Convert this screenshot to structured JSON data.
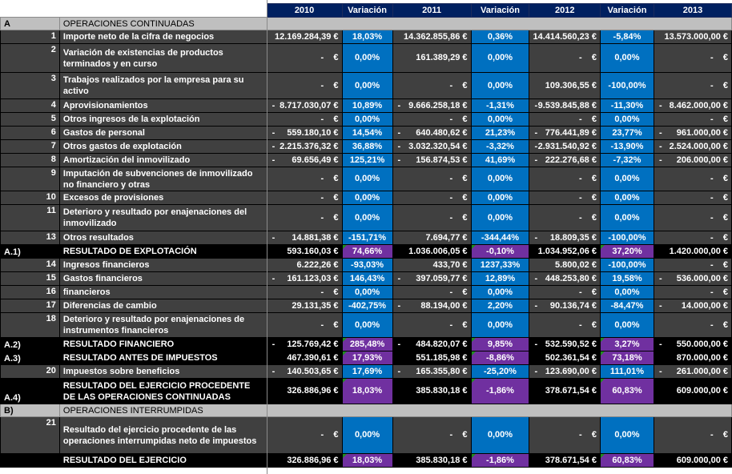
{
  "columns": [
    "2010",
    "Variación",
    "2011",
    "Variación",
    "2012",
    "Variación",
    "2013"
  ],
  "colors": {
    "header": "#002060",
    "cell": "#404040",
    "variation": "#0070c0",
    "total_variation": "#7030a0",
    "section": "#bfbfbf"
  },
  "rows": [
    {
      "type": "section",
      "code": "A",
      "desc": "OPERACIONES CONTINUADAS"
    },
    {
      "type": "item",
      "code": "1",
      "desc": "Importe neto de la cifra de negocios",
      "v2010": {
        "neg": "",
        "val": "12.169.284,39 €"
      },
      "p1": "18,03%",
      "v2011": {
        "neg": "",
        "val": "14.362.855,86 €"
      },
      "p2": "0,36%",
      "v2012": {
        "neg": "",
        "val": "14.414.560,23 €"
      },
      "p3": "-5,84%",
      "v2013": {
        "neg": "",
        "val": "13.573.000,00 €"
      }
    },
    {
      "type": "item",
      "code": "2",
      "desc": "Variación de existencias de productos terminados y en curso",
      "v2010": {
        "neg": "",
        "val": "-    €"
      },
      "p1": "0,00%",
      "v2011": {
        "neg": "",
        "val": "161.389,29 €"
      },
      "p2": "0,00%",
      "v2012": {
        "neg": "",
        "val": "-    €"
      },
      "p3": "0,00%",
      "v2013": {
        "neg": "",
        "val": "-    €"
      }
    },
    {
      "type": "item",
      "code": "3",
      "desc": "Trabajos realizados por la empresa para su activo",
      "v2010": {
        "neg": "",
        "val": "-    €"
      },
      "p1": "0,00%",
      "v2011": {
        "neg": "",
        "val": "-    €"
      },
      "p2": "0,00%",
      "v2012": {
        "neg": "",
        "val": "109.306,55 €"
      },
      "p3": "-100,00%",
      "v2013": {
        "neg": "",
        "val": "-    €"
      }
    },
    {
      "type": "item",
      "code": "4",
      "desc": "Aprovisionamientos",
      "v2010": {
        "neg": "-",
        "val": "8.717.030,07 €"
      },
      "p1": "10,89%",
      "v2011": {
        "neg": "-",
        "val": "9.666.258,18 €"
      },
      "p2": "-1,31%",
      "v2012": {
        "neg": "-",
        "val": "9.539.845,88 €"
      },
      "p3": "-11,30%",
      "v2013": {
        "neg": "-",
        "val": "8.462.000,00 €"
      }
    },
    {
      "type": "item",
      "code": "5",
      "desc": "Otros ingresos de la explotación",
      "v2010": {
        "neg": "",
        "val": "-    €"
      },
      "p1": "0,00%",
      "v2011": {
        "neg": "",
        "val": "-    €"
      },
      "p2": "0,00%",
      "v2012": {
        "neg": "",
        "val": "-    €"
      },
      "p3": "0,00%",
      "v2013": {
        "neg": "",
        "val": "-    €"
      }
    },
    {
      "type": "item",
      "code": "6",
      "desc": "Gastos de personal",
      "v2010": {
        "neg": "-",
        "val": "559.180,10 €"
      },
      "p1": "14,54%",
      "v2011": {
        "neg": "-",
        "val": "640.480,62 €"
      },
      "p2": "21,23%",
      "v2012": {
        "neg": "-",
        "val": "776.441,89 €"
      },
      "p3": "23,77%",
      "v2013": {
        "neg": "-",
        "val": "961.000,00 €"
      }
    },
    {
      "type": "item",
      "code": "7",
      "desc": "Otros gastos de explotación",
      "v2010": {
        "neg": "-",
        "val": "2.215.376,32 €"
      },
      "p1": "36,88%",
      "v2011": {
        "neg": "-",
        "val": "3.032.320,54 €"
      },
      "p2": "-3,32%",
      "v2012": {
        "neg": "-",
        "val": "2.931.540,92 €"
      },
      "p3": "-13,90%",
      "v2013": {
        "neg": "-",
        "val": "2.524.000,00 €"
      }
    },
    {
      "type": "item",
      "code": "8",
      "desc": "Amortización del inmovilizado",
      "v2010": {
        "neg": "-",
        "val": "69.656,49 €"
      },
      "p1": "125,21%",
      "v2011": {
        "neg": "-",
        "val": "156.874,53 €"
      },
      "p2": "41,69%",
      "v2012": {
        "neg": "-",
        "val": "222.276,68 €"
      },
      "p3": "-7,32%",
      "v2013": {
        "neg": "-",
        "val": "206.000,00 €"
      }
    },
    {
      "type": "item",
      "code": "9",
      "desc": "Imputación de subvenciones de inmovilizado no financiero y otras",
      "v2010": {
        "neg": "",
        "val": "-    €"
      },
      "p1": "0,00%",
      "v2011": {
        "neg": "",
        "val": "-    €"
      },
      "p2": "0,00%",
      "v2012": {
        "neg": "",
        "val": "-    €"
      },
      "p3": "0,00%",
      "v2013": {
        "neg": "",
        "val": "-    €"
      }
    },
    {
      "type": "item",
      "code": "10",
      "desc": "Excesos de provisiones",
      "v2010": {
        "neg": "",
        "val": "-    €"
      },
      "p1": "0,00%",
      "v2011": {
        "neg": "",
        "val": "-    €"
      },
      "p2": "0,00%",
      "v2012": {
        "neg": "",
        "val": "-    €"
      },
      "p3": "0,00%",
      "v2013": {
        "neg": "",
        "val": "-    €"
      }
    },
    {
      "type": "item",
      "code": "11",
      "desc": "Deterioro y resultado por enajenaciones del inmovilizado",
      "v2010": {
        "neg": "",
        "val": "-    €"
      },
      "p1": "0,00%",
      "v2011": {
        "neg": "",
        "val": "-    €"
      },
      "p2": "0,00%",
      "v2012": {
        "neg": "",
        "val": "-    €"
      },
      "p3": "0,00%",
      "v2013": {
        "neg": "",
        "val": "-    €"
      }
    },
    {
      "type": "item",
      "code": "13",
      "desc": "Otros resultados",
      "v2010": {
        "neg": "-",
        "val": "14.881,38 €"
      },
      "p1": "-151,71%",
      "v2011": {
        "neg": "",
        "val": "7.694,77 €"
      },
      "p2": "-344,44%",
      "v2012": {
        "neg": "-",
        "val": "18.809,35 €"
      },
      "p3": "-100,00%",
      "v2013": {
        "neg": "",
        "val": "-    €"
      }
    },
    {
      "type": "total",
      "code": "A.1)",
      "desc": "RESULTADO DE EXPLOTACIÓN",
      "v2010": {
        "neg": "",
        "val": "593.160,03 €"
      },
      "p1": "74,66%",
      "v2011": {
        "neg": "",
        "val": "1.036.006,05 €"
      },
      "p2": "-0,10%",
      "v2012": {
        "neg": "",
        "val": "1.034.952,06 €"
      },
      "p3": "37,20%",
      "v2013": {
        "neg": "",
        "val": "1.420.000,00 €"
      }
    },
    {
      "type": "item",
      "code": "14",
      "desc": "Ingresos financieros",
      "v2010": {
        "neg": "",
        "val": "6.222,26 €"
      },
      "p1": "-93,03%",
      "v2011": {
        "neg": "",
        "val": "433,70 €"
      },
      "p2": "1237,33%",
      "v2012": {
        "neg": "",
        "val": "5.800,02 €"
      },
      "p3": "-100,00%",
      "v2013": {
        "neg": "",
        "val": "-    €"
      }
    },
    {
      "type": "item",
      "code": "15",
      "desc": "Gastos financieros",
      "v2010": {
        "neg": "-",
        "val": "161.123,03 €"
      },
      "p1": "146,43%",
      "v2011": {
        "neg": "-",
        "val": "397.059,77 €"
      },
      "p2": "12,89%",
      "v2012": {
        "neg": "-",
        "val": "448.253,80 €"
      },
      "p3": "19,58%",
      "v2013": {
        "neg": "-",
        "val": "536.000,00 €"
      }
    },
    {
      "type": "item",
      "code": "16",
      "desc": "financieros",
      "v2010": {
        "neg": "",
        "val": "-    €"
      },
      "p1": "0,00%",
      "v2011": {
        "neg": "",
        "val": "-    €"
      },
      "p2": "0,00%",
      "v2012": {
        "neg": "",
        "val": "-    €"
      },
      "p3": "0,00%",
      "v2013": {
        "neg": "",
        "val": "-    €"
      }
    },
    {
      "type": "item",
      "code": "17",
      "desc": "Diferencias de cambio",
      "v2010": {
        "neg": "",
        "val": "29.131,35 €"
      },
      "p1": "-402,75%",
      "v2011": {
        "neg": "-",
        "val": "88.194,00 €"
      },
      "p2": "2,20%",
      "v2012": {
        "neg": "-",
        "val": "90.136,74 €"
      },
      "p3": "-84,47%",
      "v2013": {
        "neg": "-",
        "val": "14.000,00 €"
      }
    },
    {
      "type": "item",
      "code": "18",
      "desc": "Deterioro y resultado por enajenaciones de instrumentos financieros",
      "v2010": {
        "neg": "",
        "val": "-    €"
      },
      "p1": "0,00%",
      "v2011": {
        "neg": "",
        "val": "-    €"
      },
      "p2": "0,00%",
      "v2012": {
        "neg": "",
        "val": "-    €"
      },
      "p3": "0,00%",
      "v2013": {
        "neg": "",
        "val": "-    €"
      }
    },
    {
      "type": "total",
      "code": "A.2)",
      "desc": "RESULTADO FINANCIERO",
      "v2010": {
        "neg": "-",
        "val": "125.769,42 €"
      },
      "p1": "285,48%",
      "v2011": {
        "neg": "-",
        "val": "484.820,07 €"
      },
      "p2": "9,85%",
      "v2012": {
        "neg": "-",
        "val": "532.590,52 €"
      },
      "p3": "3,27%",
      "v2013": {
        "neg": "-",
        "val": "550.000,00 €"
      }
    },
    {
      "type": "total",
      "code": "A.3)",
      "desc": "RESULTADO ANTES DE IMPUESTOS",
      "v2010": {
        "neg": "",
        "val": "467.390,61 €"
      },
      "p1": "17,93%",
      "v2011": {
        "neg": "",
        "val": "551.185,98 €"
      },
      "p2": "-8,86%",
      "v2012": {
        "neg": "",
        "val": "502.361,54 €"
      },
      "p3": "73,18%",
      "v2013": {
        "neg": "",
        "val": "870.000,00 €"
      }
    },
    {
      "type": "item",
      "code": "20",
      "desc": "Impuestos sobre beneficios",
      "v2010": {
        "neg": "-",
        "val": "140.503,65 €"
      },
      "p1": "17,69%",
      "v2011": {
        "neg": "-",
        "val": "165.355,80 €"
      },
      "p2": "-25,20%",
      "v2012": {
        "neg": "-",
        "val": "123.690,00 €"
      },
      "p3": "111,01%",
      "v2013": {
        "neg": "-",
        "val": "261.000,00 €"
      }
    },
    {
      "type": "total",
      "code": "A.4)",
      "desc": "RESULTADO DEL EJERCICIO PROCEDENTE DE LAS OPERACIONES CONTINUADAS",
      "v2010": {
        "neg": "",
        "val": "326.886,96 €"
      },
      "p1": "18,03%",
      "v2011": {
        "neg": "",
        "val": "385.830,18 €"
      },
      "p2": "-1,86%",
      "v2012": {
        "neg": "",
        "val": "378.671,54 €"
      },
      "p3": "60,83%",
      "v2013": {
        "neg": "",
        "val": "609.000,00 €"
      }
    },
    {
      "type": "section",
      "code": "B)",
      "desc": "OPERACIONES INTERRUMPIDAS"
    },
    {
      "type": "item",
      "code": "21",
      "desc": "Resultado del ejercicio procedente de las operaciones interrumpidas neto de impuestos",
      "v2010": {
        "neg": "",
        "val": "-    €"
      },
      "p1": "0,00%",
      "v2011": {
        "neg": "",
        "val": "-    €"
      },
      "p2": "0,00%",
      "v2012": {
        "neg": "",
        "val": "-    €"
      },
      "p3": "0,00%",
      "v2013": {
        "neg": "",
        "val": "-    €"
      }
    },
    {
      "type": "total",
      "code": "",
      "desc": "RESULTADO DEL EJERCICIO",
      "v2010": {
        "neg": "",
        "val": "326.886,96 €"
      },
      "p1": "18,03%",
      "v2011": {
        "neg": "",
        "val": "385.830,18 €"
      },
      "p2": "-1,86%",
      "v2012": {
        "neg": "",
        "val": "378.671,54 €"
      },
      "p3": "60,83%",
      "v2013": {
        "neg": "",
        "val": "609.000,00 €"
      }
    }
  ]
}
